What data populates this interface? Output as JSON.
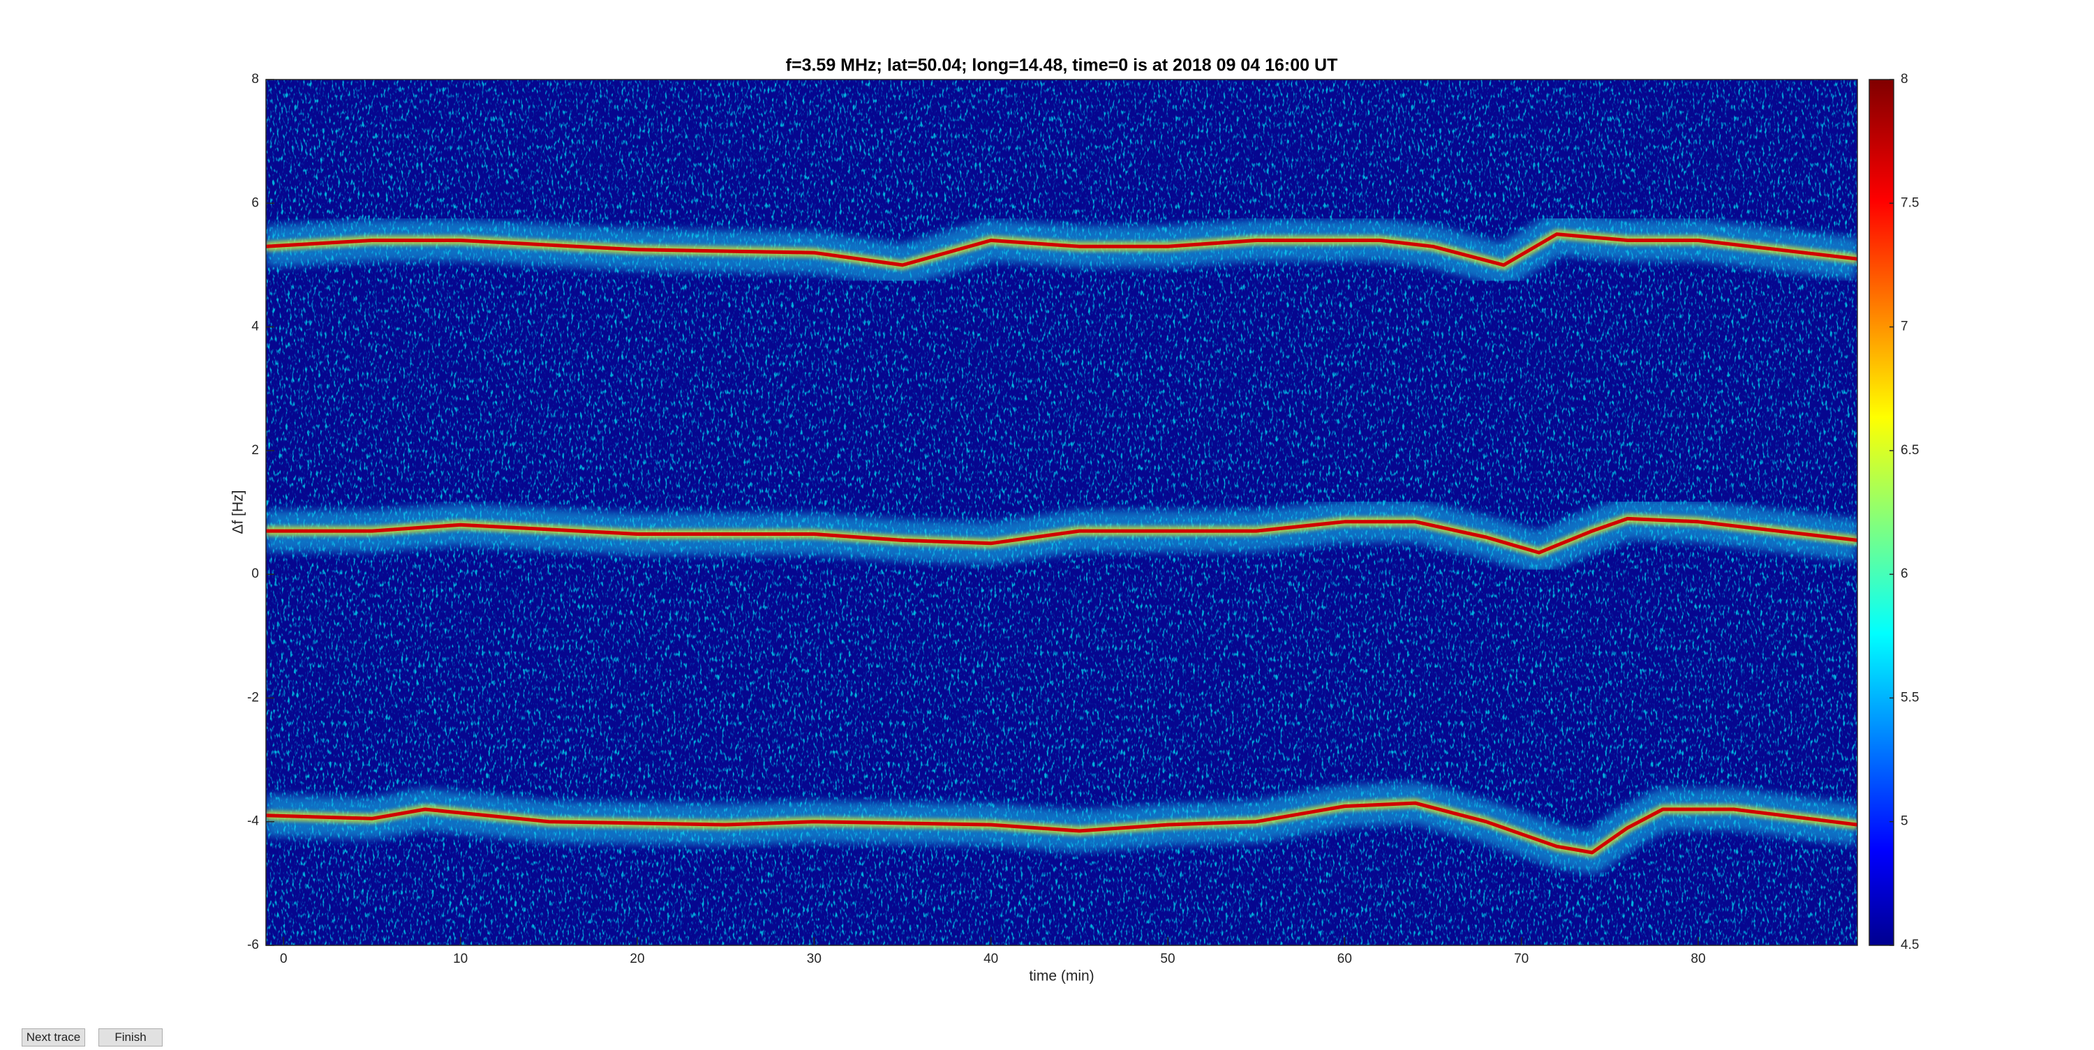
{
  "chart_data": {
    "type": "spectrogram",
    "title": "f=3.59 MHz;  lat=50.04; long=14.48, time=0 is at 2018 09 04 16:00 UT",
    "xlabel": "time (min)",
    "ylabel": "Δf [Hz]",
    "xlim": [
      -1,
      89
    ],
    "xticks": [
      0,
      10,
      20,
      30,
      40,
      50,
      60,
      70,
      80
    ],
    "ylim": [
      -6,
      8
    ],
    "yticks": [
      -6,
      -4,
      -2,
      0,
      2,
      4,
      6,
      8
    ],
    "clim": [
      4.5,
      8
    ],
    "cticks": [
      4.5,
      5,
      5.5,
      6,
      6.5,
      7,
      7.5,
      8
    ],
    "series": [
      {
        "color": "#d00000",
        "x": [
          -1,
          5,
          10,
          20,
          30,
          35,
          40,
          45,
          50,
          55,
          62,
          65,
          69,
          72,
          76,
          80,
          89
        ],
        "values": [
          5.3,
          5.4,
          5.4,
          5.25,
          5.2,
          5.0,
          5.4,
          5.3,
          5.3,
          5.4,
          5.4,
          5.3,
          5.0,
          5.5,
          5.4,
          5.4,
          5.1
        ]
      },
      {
        "color": "#d00000",
        "x": [
          -1,
          5,
          10,
          20,
          30,
          35,
          40,
          45,
          50,
          55,
          60,
          64,
          68,
          71,
          74,
          76,
          80,
          89
        ],
        "values": [
          0.7,
          0.7,
          0.8,
          0.65,
          0.65,
          0.55,
          0.5,
          0.7,
          0.7,
          0.7,
          0.85,
          0.85,
          0.6,
          0.35,
          0.7,
          0.9,
          0.85,
          0.55
        ]
      },
      {
        "color": "#d00000",
        "x": [
          -1,
          5,
          8,
          15,
          25,
          30,
          40,
          45,
          50,
          55,
          60,
          64,
          68,
          72,
          74,
          76,
          78,
          82,
          89
        ],
        "values": [
          -3.9,
          -3.95,
          -3.8,
          -4.0,
          -4.05,
          -4.0,
          -4.05,
          -4.15,
          -4.05,
          -4.0,
          -3.75,
          -3.7,
          -4.0,
          -4.4,
          -4.5,
          -4.1,
          -3.8,
          -3.8,
          -4.05
        ]
      }
    ]
  },
  "buttons": [
    "Next trace",
    "Finish"
  ]
}
